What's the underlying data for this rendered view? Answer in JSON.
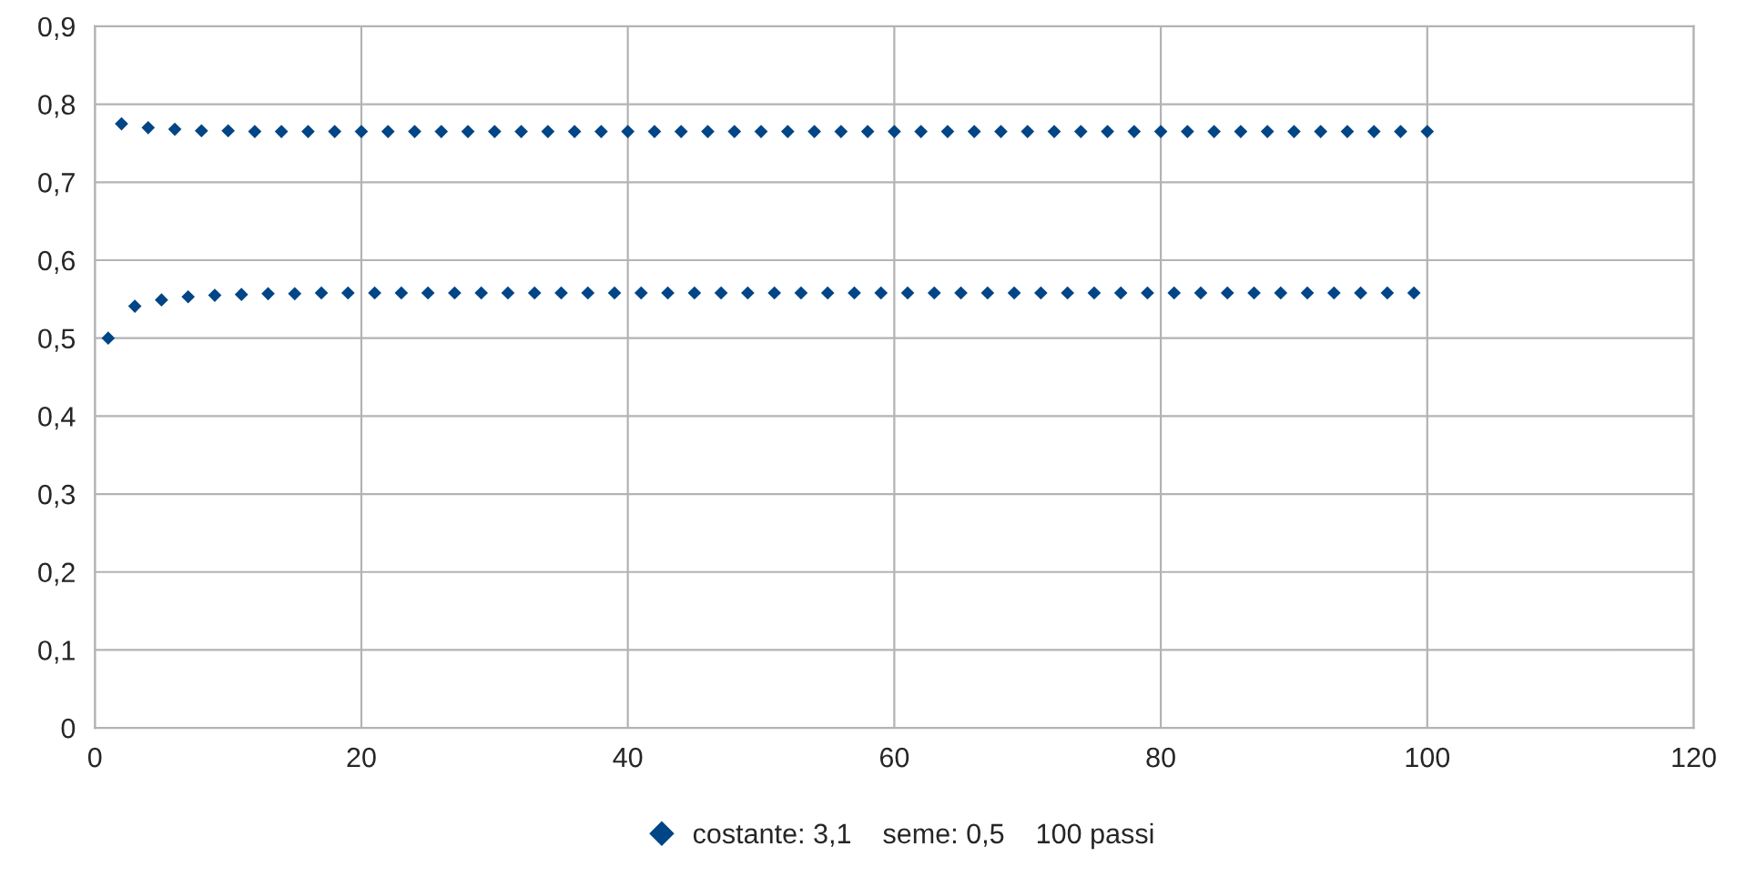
{
  "chart_data": {
    "type": "scatter",
    "x": [
      1,
      2,
      3,
      4,
      5,
      6,
      7,
      8,
      9,
      10,
      11,
      12,
      13,
      14,
      15,
      16,
      17,
      18,
      19,
      20,
      21,
      22,
      23,
      24,
      25,
      26,
      27,
      28,
      29,
      30,
      31,
      32,
      33,
      34,
      35,
      36,
      37,
      38,
      39,
      40,
      41,
      42,
      43,
      44,
      45,
      46,
      47,
      48,
      49,
      50,
      51,
      52,
      53,
      54,
      55,
      56,
      57,
      58,
      59,
      60,
      61,
      62,
      63,
      64,
      65,
      66,
      67,
      68,
      69,
      70,
      71,
      72,
      73,
      74,
      75,
      76,
      77,
      78,
      79,
      80,
      81,
      82,
      83,
      84,
      85,
      86,
      87,
      88,
      89,
      90,
      91,
      92,
      93,
      94,
      95,
      96,
      97,
      98,
      99,
      100
    ],
    "series": [
      {
        "name": "costante: 3,1    seme: 0,5    100 passi",
        "color": "#004586",
        "values": [
          0.5,
          0.775,
          0.541,
          0.77,
          0.549,
          0.768,
          0.553,
          0.766,
          0.555,
          0.766,
          0.556,
          0.765,
          0.557,
          0.765,
          0.557,
          0.765,
          0.558,
          0.765,
          0.558,
          0.765,
          0.558,
          0.765,
          0.558,
          0.765,
          0.558,
          0.765,
          0.558,
          0.765,
          0.558,
          0.765,
          0.558,
          0.765,
          0.558,
          0.765,
          0.558,
          0.765,
          0.558,
          0.765,
          0.558,
          0.765,
          0.558,
          0.765,
          0.558,
          0.765,
          0.558,
          0.765,
          0.558,
          0.765,
          0.558,
          0.765,
          0.558,
          0.765,
          0.558,
          0.765,
          0.558,
          0.765,
          0.558,
          0.765,
          0.558,
          0.765,
          0.558,
          0.765,
          0.558,
          0.765,
          0.558,
          0.765,
          0.558,
          0.765,
          0.558,
          0.765,
          0.558,
          0.765,
          0.558,
          0.765,
          0.558,
          0.765,
          0.558,
          0.765,
          0.558,
          0.765,
          0.558,
          0.765,
          0.558,
          0.765,
          0.558,
          0.765,
          0.558,
          0.765,
          0.558,
          0.765,
          0.558,
          0.765,
          0.558,
          0.765,
          0.558,
          0.765,
          0.558,
          0.765,
          0.558,
          0.765
        ]
      }
    ],
    "xlim": [
      0,
      120
    ],
    "xticks": [
      0,
      20,
      40,
      60,
      80,
      100,
      120
    ],
    "ylim": [
      0,
      0.9
    ],
    "yticks": [
      0,
      {
        "value": 0.1,
        "label": "0,1"
      },
      {
        "value": 0.2,
        "label": "0,2"
      },
      {
        "value": 0.3,
        "label": "0,3"
      },
      {
        "value": 0.4,
        "label": "0,4"
      },
      {
        "value": 0.5,
        "label": "0,5"
      },
      {
        "value": 0.6,
        "label": "0,6"
      },
      {
        "value": 0.7,
        "label": "0,7"
      },
      {
        "value": 0.8,
        "label": "0,8"
      },
      {
        "value": 0.9,
        "label": "0,9"
      }
    ],
    "grid": true,
    "legend": "bottom",
    "marker": "diamond"
  }
}
